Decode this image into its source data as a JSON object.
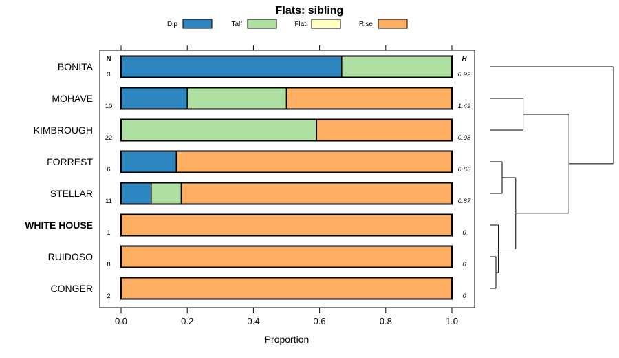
{
  "chart_data": {
    "type": "bar",
    "orientation": "horizontal",
    "stacked": true,
    "title": "Flats: sibling",
    "xlabel": "Proportion",
    "xlim": [
      0,
      1
    ],
    "xticks": [
      0.0,
      0.2,
      0.4,
      0.6,
      0.8,
      1.0
    ],
    "xtick_labels": [
      "0.0",
      "0.2",
      "0.4",
      "0.6",
      "0.8",
      "1.0"
    ],
    "n_header": "N",
    "h_header": "H",
    "legend": [
      {
        "name": "Dip",
        "color": "#2e86c1"
      },
      {
        "name": "Talf",
        "color": "#addfa1"
      },
      {
        "name": "Flat",
        "color": "#ffffbf"
      },
      {
        "name": "Rise",
        "color": "#fdae61"
      }
    ],
    "categories": [
      "BONITA",
      "MOHAVE",
      "KIMBROUGH",
      "FORREST",
      "STELLAR",
      "WHITE HOUSE",
      "RUIDOSO",
      "CONGER"
    ],
    "bold_categories": [
      "WHITE HOUSE"
    ],
    "n": [
      "3",
      "10",
      "22",
      "6",
      "11",
      "1",
      "8",
      "2"
    ],
    "h": [
      "0.92",
      "1.49",
      "0.98",
      "0.65",
      "0.87",
      "0",
      "0",
      "0"
    ],
    "series": [
      {
        "name": "Dip",
        "values": [
          0.667,
          0.2,
          0,
          0.167,
          0.091,
          0,
          0,
          0
        ]
      },
      {
        "name": "Talf",
        "values": [
          0.333,
          0.3,
          0.591,
          0,
          0.091,
          0,
          0,
          0
        ]
      },
      {
        "name": "Flat",
        "values": [
          0,
          0,
          0,
          0,
          0,
          0,
          0,
          0
        ]
      },
      {
        "name": "Rise",
        "values": [
          0,
          0.5,
          0.409,
          0.833,
          0.818,
          1,
          1,
          1
        ]
      }
    ],
    "dendrogram": {
      "leaves": [
        "BONITA",
        "MOHAVE",
        "KIMBROUGH",
        "FORREST",
        "STELLAR",
        "WHITE HOUSE",
        "RUIDOSO",
        "CONGER"
      ],
      "merges": [
        {
          "a": "MOHAVE",
          "b": "KIMBROUGH",
          "height": 0.27
        },
        {
          "a": "FORREST",
          "b": "STELLAR",
          "height": 0.1
        },
        {
          "a": "RUIDOSO",
          "b": "CONGER",
          "height": 0.05
        },
        {
          "a": "WHITE HOUSE",
          "b": "RUIDOSO+CONGER",
          "height": 0.07
        },
        {
          "a": "FORREST+STELLAR",
          "b": "WHITE HOUSE+RUIDOSO+CONGER",
          "height": 0.21
        },
        {
          "a": "MOHAVE+KIMBROUGH",
          "b": "FORREST+STELLAR+WHITE HOUSE+RUIDOSO+CONGER",
          "height": 0.64
        },
        {
          "a": "BONITA",
          "b": "rest",
          "height": 1.0
        }
      ]
    }
  }
}
